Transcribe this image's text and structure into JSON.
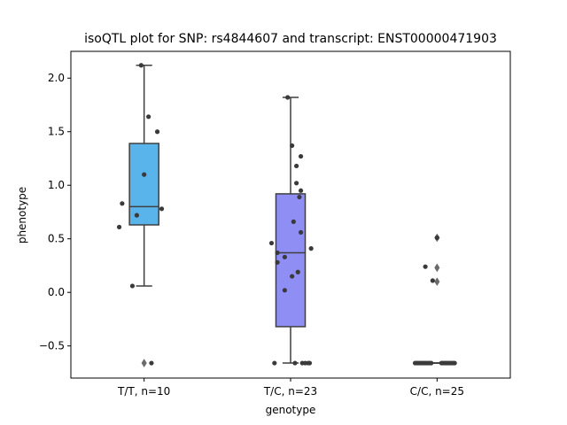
{
  "chart_data": {
    "type": "box",
    "title": "isoQTL plot for SNP: rs4844607 and transcript: ENST00000471903",
    "xlabel": "genotype",
    "ylabel": "phenotype",
    "ylim": [
      -0.8,
      2.25
    ],
    "yticks": [
      -0.5,
      0.0,
      0.5,
      1.0,
      1.5,
      2.0
    ],
    "ytick_labels": [
      "−0.5",
      "0.0",
      "0.5",
      "1.0",
      "1.5",
      "2.0"
    ],
    "grid": false,
    "legend": "none",
    "categories": [
      "T/T, n=10",
      "T/C, n=23",
      "C/C, n=25"
    ],
    "colors": [
      "#5ab4ec",
      "#8f8ef5",
      "#b7a6c9"
    ],
    "box_edge_color": "#3f3f3f",
    "point_color": "#3a3a3a",
    "boxes": [
      {
        "q1": 0.63,
        "median": 0.8,
        "q3": 1.39,
        "whisker_low": 0.06,
        "whisker_high": 2.12,
        "fliers": [
          -0.66
        ]
      },
      {
        "q1": -0.32,
        "median": 0.37,
        "q3": 0.92,
        "whisker_low": -0.66,
        "whisker_high": 1.82,
        "fliers": []
      },
      {
        "q1": -0.66,
        "median": -0.66,
        "q3": -0.66,
        "whisker_low": -0.66,
        "whisker_high": -0.66,
        "fliers": [
          0.51,
          0.23,
          0.1
        ]
      }
    ],
    "points": [
      [
        {
          "dx": -0.02,
          "y": 2.12
        },
        {
          "dx": 0.03,
          "y": 1.64
        },
        {
          "dx": 0.09,
          "y": 1.5
        },
        {
          "dx": 0.0,
          "y": 1.1
        },
        {
          "dx": -0.15,
          "y": 0.83
        },
        {
          "dx": 0.12,
          "y": 0.78
        },
        {
          "dx": -0.05,
          "y": 0.72
        },
        {
          "dx": -0.17,
          "y": 0.61
        },
        {
          "dx": -0.08,
          "y": 0.06
        },
        {
          "dx": 0.05,
          "y": -0.66
        }
      ],
      [
        {
          "dx": -0.02,
          "y": 1.82
        },
        {
          "dx": 0.01,
          "y": 1.37
        },
        {
          "dx": 0.07,
          "y": 1.27
        },
        {
          "dx": 0.04,
          "y": 1.18
        },
        {
          "dx": 0.04,
          "y": 1.02
        },
        {
          "dx": 0.07,
          "y": 0.95
        },
        {
          "dx": 0.06,
          "y": 0.89
        },
        {
          "dx": 0.02,
          "y": 0.66
        },
        {
          "dx": 0.07,
          "y": 0.56
        },
        {
          "dx": -0.13,
          "y": 0.46
        },
        {
          "dx": 0.14,
          "y": 0.41
        },
        {
          "dx": -0.09,
          "y": 0.37
        },
        {
          "dx": -0.04,
          "y": 0.33
        },
        {
          "dx": -0.09,
          "y": 0.28
        },
        {
          "dx": 0.05,
          "y": 0.19
        },
        {
          "dx": 0.01,
          "y": 0.15
        },
        {
          "dx": -0.04,
          "y": 0.02
        },
        {
          "dx": -0.11,
          "y": -0.66
        },
        {
          "dx": 0.03,
          "y": -0.66
        },
        {
          "dx": 0.08,
          "y": -0.66
        },
        {
          "dx": 0.1,
          "y": -0.66
        },
        {
          "dx": 0.12,
          "y": -0.66
        },
        {
          "dx": 0.13,
          "y": -0.66
        }
      ],
      [
        {
          "dx": 0.0,
          "y": 0.51
        },
        {
          "dx": -0.08,
          "y": 0.24
        },
        {
          "dx": -0.03,
          "y": 0.11
        },
        {
          "dx": -0.15,
          "y": -0.66
        },
        {
          "dx": -0.14,
          "y": -0.66
        },
        {
          "dx": -0.13,
          "y": -0.66
        },
        {
          "dx": -0.12,
          "y": -0.66
        },
        {
          "dx": -0.11,
          "y": -0.66
        },
        {
          "dx": -0.1,
          "y": -0.66
        },
        {
          "dx": -0.09,
          "y": -0.66
        },
        {
          "dx": -0.08,
          "y": -0.66
        },
        {
          "dx": -0.07,
          "y": -0.66
        },
        {
          "dx": -0.06,
          "y": -0.66
        },
        {
          "dx": -0.05,
          "y": -0.66
        },
        {
          "dx": -0.04,
          "y": -0.66
        },
        {
          "dx": 0.03,
          "y": -0.66
        },
        {
          "dx": 0.04,
          "y": -0.66
        },
        {
          "dx": 0.05,
          "y": -0.66
        },
        {
          "dx": 0.06,
          "y": -0.66
        },
        {
          "dx": 0.07,
          "y": -0.66
        },
        {
          "dx": 0.08,
          "y": -0.66
        },
        {
          "dx": 0.09,
          "y": -0.66
        },
        {
          "dx": 0.1,
          "y": -0.66
        },
        {
          "dx": 0.11,
          "y": -0.66
        },
        {
          "dx": 0.12,
          "y": -0.66
        }
      ]
    ]
  }
}
